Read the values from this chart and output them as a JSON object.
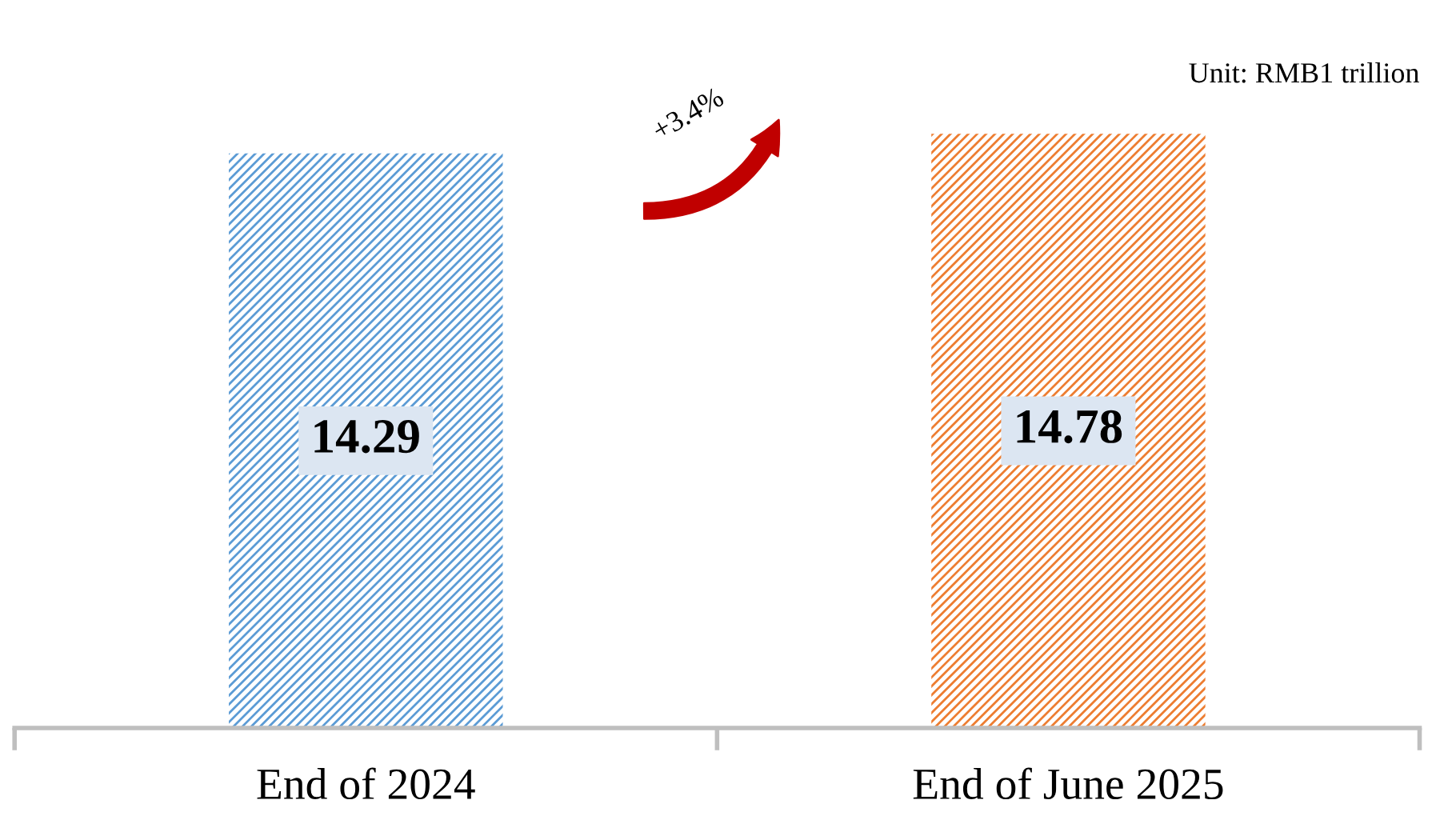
{
  "chart_data": {
    "type": "bar",
    "categories": [
      "End of 2024",
      "End of June 2025"
    ],
    "values": [
      14.29,
      14.78
    ],
    "colors": [
      "#5b9bd5",
      "#ed7d31"
    ],
    "data_labels": true,
    "annotations": [
      "+3.4%",
      "Unit: RMB1 trillion"
    ]
  }
}
